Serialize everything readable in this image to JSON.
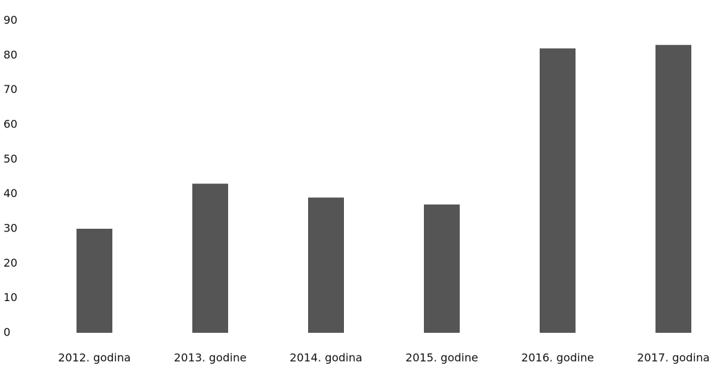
{
  "chart_data": {
    "type": "bar",
    "categories": [
      "2012. godina",
      "2013. godine",
      "2014. godina",
      "2015. godine",
      "2016. godine",
      "2017. godina"
    ],
    "values": [
      30,
      43,
      39,
      37,
      82,
      83
    ],
    "color": "#555555",
    "ylim": [
      0,
      90
    ],
    "yticks": [
      0,
      10,
      20,
      30,
      40,
      50,
      60,
      70,
      80,
      90
    ],
    "grid": false
  }
}
